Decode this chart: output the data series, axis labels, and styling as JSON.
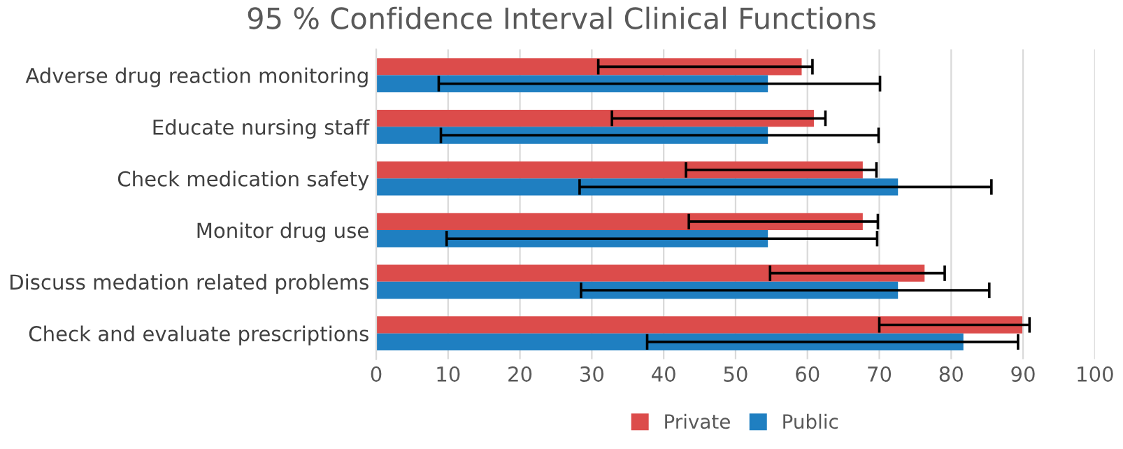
{
  "chart_data": {
    "type": "bar",
    "orientation": "horizontal",
    "title": "95 % Confidence Interval Clinical Functions",
    "categories": [
      "Adverse drug reaction monitoring",
      "Educate nursing staff",
      "Check medication safety",
      "Monitor drug use",
      "Discuss medation related problems",
      "Check and evaluate prescriptions"
    ],
    "series": [
      {
        "name": "Private",
        "color": "#dc4c4b",
        "values": [
          59.2,
          60.9,
          67.7,
          67.7,
          76.3,
          89.9
        ],
        "errors": [
          [
            30.9,
            60.7
          ],
          [
            32.8,
            62.5
          ],
          [
            43.1,
            69.6
          ],
          [
            43.5,
            69.8
          ],
          [
            54.8,
            79.1
          ],
          [
            70.0,
            90.9
          ]
        ]
      },
      {
        "name": "Public",
        "color": "#1f7fc1",
        "values": [
          54.5,
          54.5,
          72.6,
          54.5,
          72.6,
          81.7
        ],
        "errors": [
          [
            8.7,
            70.1
          ],
          [
            9.0,
            69.9
          ],
          [
            28.3,
            85.6
          ],
          [
            9.8,
            69.7
          ],
          [
            28.5,
            85.3
          ],
          [
            37.7,
            89.3
          ]
        ]
      }
    ],
    "xlim": [
      0,
      100
    ],
    "xticks": [
      0,
      10,
      20,
      30,
      40,
      50,
      60,
      70,
      80,
      90,
      100
    ],
    "grid": "x",
    "legend": "bottom"
  }
}
